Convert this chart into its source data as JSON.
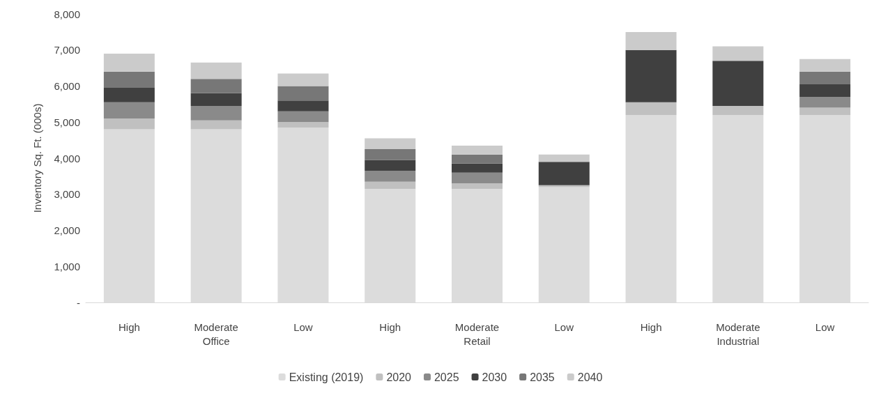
{
  "chart_data": {
    "type": "bar",
    "stacked": true,
    "ylabel": "Inventory Sq. Ft. (000s)",
    "categories": [
      "High",
      "Moderate",
      "Low",
      "High",
      "Moderate",
      "Low",
      "High",
      "Moderate",
      "Low"
    ],
    "annotations": [
      "Office",
      "Retail",
      "Industrial"
    ],
    "series": [
      {
        "name": "Existing (2019)",
        "color": "#dcdcdc",
        "values": [
          4800,
          4800,
          4850,
          3150,
          3150,
          3200,
          5200,
          5200,
          5200
        ]
      },
      {
        "name": "2020",
        "color": "#c0c0c0",
        "values": [
          300,
          250,
          150,
          200,
          150,
          50,
          350,
          250,
          200
        ]
      },
      {
        "name": "2025",
        "color": "#8a8a8a",
        "values": [
          450,
          400,
          300,
          300,
          300,
          0,
          0,
          0,
          300
        ]
      },
      {
        "name": "2030",
        "color": "#404040",
        "values": [
          400,
          350,
          300,
          300,
          250,
          650,
          1450,
          1250,
          350
        ]
      },
      {
        "name": "2035",
        "color": "#777777",
        "values": [
          450,
          400,
          400,
          300,
          250,
          0,
          0,
          0,
          350
        ]
      },
      {
        "name": "2040",
        "color": "#cbcbcb",
        "values": [
          500,
          450,
          350,
          300,
          250,
          200,
          500,
          400,
          350
        ]
      }
    ],
    "ylim": [
      0,
      8000
    ],
    "yticks": [
      {
        "value": 0,
        "label": "-"
      },
      {
        "value": 1000,
        "label": "1,000"
      },
      {
        "value": 2000,
        "label": "2,000"
      },
      {
        "value": 3000,
        "label": "3,000"
      },
      {
        "value": 4000,
        "label": "4,000"
      },
      {
        "value": 5000,
        "label": "5,000"
      },
      {
        "value": 6000,
        "label": "6,000"
      },
      {
        "value": 7000,
        "label": "7,000"
      },
      {
        "value": 8000,
        "label": "8,000"
      }
    ],
    "grid": false,
    "legend": "bottom"
  }
}
